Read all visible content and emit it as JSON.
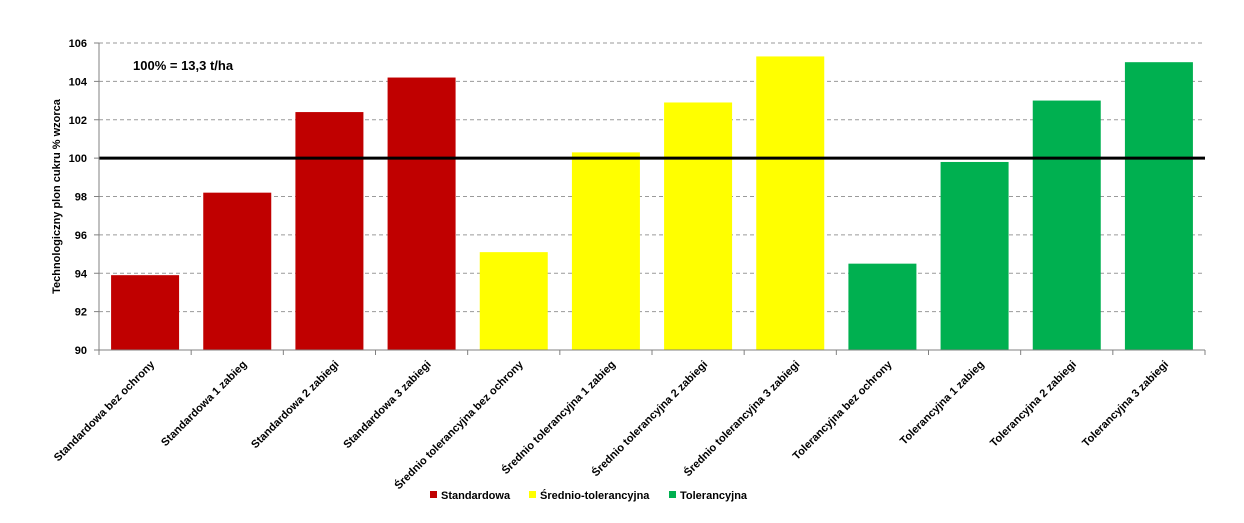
{
  "chart_data": {
    "type": "bar",
    "ylabel": "Technologiczny plon cukru % wzorca",
    "annotation": "100% = 13,3 t/ha",
    "ylim": [
      90,
      106
    ],
    "yticks": [
      90,
      92,
      94,
      96,
      98,
      100,
      102,
      104,
      106
    ],
    "reference_line": 100,
    "grid": "horizontal dashed",
    "legend_position": "bottom",
    "colors": {
      "Standardowa": "#c00000",
      "Średnio-tolerancyjna": "#ffff00",
      "Tolerancyjna": "#00b050",
      "reference_line": "#000000"
    },
    "legend": [
      "Standardowa",
      "Średnio-tolerancyjna",
      "Tolerancyjna"
    ],
    "categories": [
      "Standardowa bez ochrony",
      "Standardowa 1 zabieg",
      "Standardowa 2 zabiegi",
      "Standardowa 3 zabiegi",
      "Średnio tolerancyjna bez ochrony",
      "Średnio tolerancyjna 1 zabieg",
      "Średnio tolerancyjna 2 zabiegi",
      "Średnio tolerancyjna 3 zabiegi",
      "Tolerancyjna bez ochrony",
      "Tolerancyjna 1 zabieg",
      "Tolerancyjna 2 zabiegi",
      "Tolerancyjna 3 zabiegi"
    ],
    "groups": [
      "Standardowa",
      "Standardowa",
      "Standardowa",
      "Standardowa",
      "Średnio-tolerancyjna",
      "Średnio-tolerancyjna",
      "Średnio-tolerancyjna",
      "Średnio-tolerancyjna",
      "Tolerancyjna",
      "Tolerancyjna",
      "Tolerancyjna",
      "Tolerancyjna"
    ],
    "values": [
      93.9,
      98.2,
      102.4,
      104.2,
      95.1,
      100.3,
      102.9,
      105.3,
      94.5,
      99.8,
      103.0,
      105.0
    ]
  }
}
